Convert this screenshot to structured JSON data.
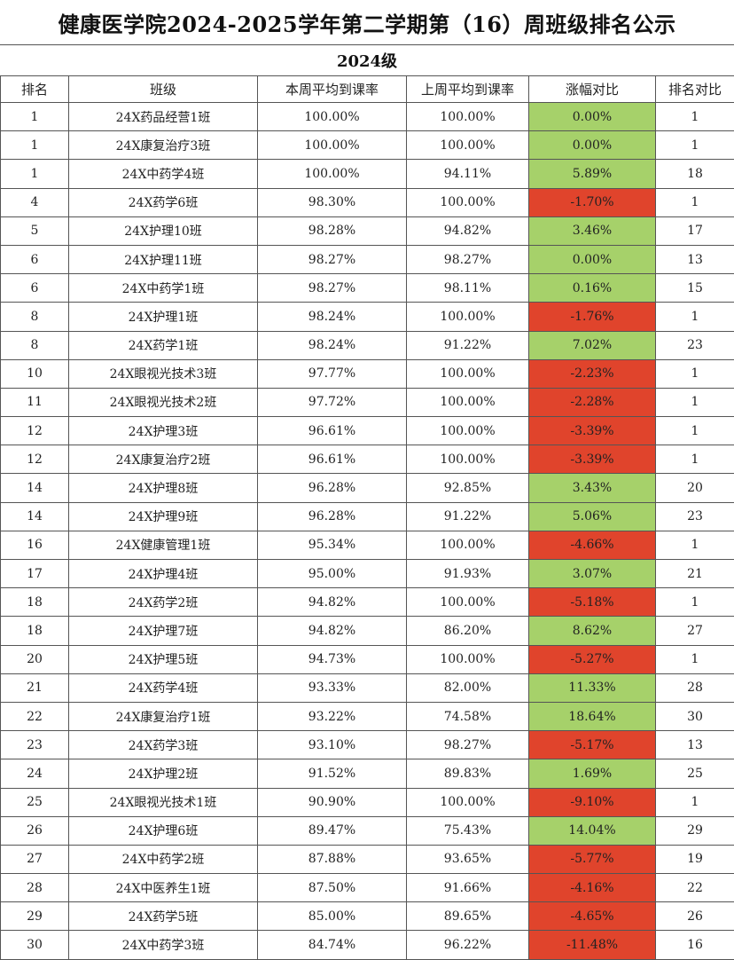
{
  "title": "健康医学院2024-2025学年第二学期第（16）周班级排名公示",
  "grade": "2024级",
  "headers": [
    "排名",
    "班级",
    "本周平均到课率",
    "上周平均到课率",
    "涨幅对比",
    "排名对比"
  ],
  "colors": {
    "increase": "#a6d16a",
    "decrease": "#e0442c"
  },
  "rows": [
    {
      "rank": "1",
      "class": "24X药品经营1班",
      "this_week": "100.00%",
      "last_week": "100.00%",
      "change": "0.00%",
      "prev_rank": "1",
      "trend": "up"
    },
    {
      "rank": "1",
      "class": "24X康复治疗3班",
      "this_week": "100.00%",
      "last_week": "100.00%",
      "change": "0.00%",
      "prev_rank": "1",
      "trend": "up"
    },
    {
      "rank": "1",
      "class": "24X中药学4班",
      "this_week": "100.00%",
      "last_week": "94.11%",
      "change": "5.89%",
      "prev_rank": "18",
      "trend": "up"
    },
    {
      "rank": "4",
      "class": "24X药学6班",
      "this_week": "98.30%",
      "last_week": "100.00%",
      "change": "-1.70%",
      "prev_rank": "1",
      "trend": "down"
    },
    {
      "rank": "5",
      "class": "24X护理10班",
      "this_week": "98.28%",
      "last_week": "94.82%",
      "change": "3.46%",
      "prev_rank": "17",
      "trend": "up"
    },
    {
      "rank": "6",
      "class": "24X护理11班",
      "this_week": "98.27%",
      "last_week": "98.27%",
      "change": "0.00%",
      "prev_rank": "13",
      "trend": "up"
    },
    {
      "rank": "6",
      "class": "24X中药学1班",
      "this_week": "98.27%",
      "last_week": "98.11%",
      "change": "0.16%",
      "prev_rank": "15",
      "trend": "up"
    },
    {
      "rank": "8",
      "class": "24X护理1班",
      "this_week": "98.24%",
      "last_week": "100.00%",
      "change": "-1.76%",
      "prev_rank": "1",
      "trend": "down"
    },
    {
      "rank": "8",
      "class": "24X药学1班",
      "this_week": "98.24%",
      "last_week": "91.22%",
      "change": "7.02%",
      "prev_rank": "23",
      "trend": "up"
    },
    {
      "rank": "10",
      "class": "24X眼视光技术3班",
      "this_week": "97.77%",
      "last_week": "100.00%",
      "change": "-2.23%",
      "prev_rank": "1",
      "trend": "down"
    },
    {
      "rank": "11",
      "class": "24X眼视光技术2班",
      "this_week": "97.72%",
      "last_week": "100.00%",
      "change": "-2.28%",
      "prev_rank": "1",
      "trend": "down"
    },
    {
      "rank": "12",
      "class": "24X护理3班",
      "this_week": "96.61%",
      "last_week": "100.00%",
      "change": "-3.39%",
      "prev_rank": "1",
      "trend": "down"
    },
    {
      "rank": "12",
      "class": "24X康复治疗2班",
      "this_week": "96.61%",
      "last_week": "100.00%",
      "change": "-3.39%",
      "prev_rank": "1",
      "trend": "down"
    },
    {
      "rank": "14",
      "class": "24X护理8班",
      "this_week": "96.28%",
      "last_week": "92.85%",
      "change": "3.43%",
      "prev_rank": "20",
      "trend": "up"
    },
    {
      "rank": "14",
      "class": "24X护理9班",
      "this_week": "96.28%",
      "last_week": "91.22%",
      "change": "5.06%",
      "prev_rank": "23",
      "trend": "up"
    },
    {
      "rank": "16",
      "class": "24X健康管理1班",
      "this_week": "95.34%",
      "last_week": "100.00%",
      "change": "-4.66%",
      "prev_rank": "1",
      "trend": "down"
    },
    {
      "rank": "17",
      "class": "24X护理4班",
      "this_week": "95.00%",
      "last_week": "91.93%",
      "change": "3.07%",
      "prev_rank": "21",
      "trend": "up"
    },
    {
      "rank": "18",
      "class": "24X药学2班",
      "this_week": "94.82%",
      "last_week": "100.00%",
      "change": "-5.18%",
      "prev_rank": "1",
      "trend": "down"
    },
    {
      "rank": "18",
      "class": "24X护理7班",
      "this_week": "94.82%",
      "last_week": "86.20%",
      "change": "8.62%",
      "prev_rank": "27",
      "trend": "up"
    },
    {
      "rank": "20",
      "class": "24X护理5班",
      "this_week": "94.73%",
      "last_week": "100.00%",
      "change": "-5.27%",
      "prev_rank": "1",
      "trend": "down"
    },
    {
      "rank": "21",
      "class": "24X药学4班",
      "this_week": "93.33%",
      "last_week": "82.00%",
      "change": "11.33%",
      "prev_rank": "28",
      "trend": "up"
    },
    {
      "rank": "22",
      "class": "24X康复治疗1班",
      "this_week": "93.22%",
      "last_week": "74.58%",
      "change": "18.64%",
      "prev_rank": "30",
      "trend": "up"
    },
    {
      "rank": "23",
      "class": "24X药学3班",
      "this_week": "93.10%",
      "last_week": "98.27%",
      "change": "-5.17%",
      "prev_rank": "13",
      "trend": "down"
    },
    {
      "rank": "24",
      "class": "24X护理2班",
      "this_week": "91.52%",
      "last_week": "89.83%",
      "change": "1.69%",
      "prev_rank": "25",
      "trend": "up"
    },
    {
      "rank": "25",
      "class": "24X眼视光技术1班",
      "this_week": "90.90%",
      "last_week": "100.00%",
      "change": "-9.10%",
      "prev_rank": "1",
      "trend": "down"
    },
    {
      "rank": "26",
      "class": "24X护理6班",
      "this_week": "89.47%",
      "last_week": "75.43%",
      "change": "14.04%",
      "prev_rank": "29",
      "trend": "up"
    },
    {
      "rank": "27",
      "class": "24X中药学2班",
      "this_week": "87.88%",
      "last_week": "93.65%",
      "change": "-5.77%",
      "prev_rank": "19",
      "trend": "down"
    },
    {
      "rank": "28",
      "class": "24X中医养生1班",
      "this_week": "87.50%",
      "last_week": "91.66%",
      "change": "-4.16%",
      "prev_rank": "22",
      "trend": "down"
    },
    {
      "rank": "29",
      "class": "24X药学5班",
      "this_week": "85.00%",
      "last_week": "89.65%",
      "change": "-4.65%",
      "prev_rank": "26",
      "trend": "down"
    },
    {
      "rank": "30",
      "class": "24X中药学3班",
      "this_week": "84.74%",
      "last_week": "96.22%",
      "change": "-11.48%",
      "prev_rank": "16",
      "trend": "down"
    }
  ]
}
